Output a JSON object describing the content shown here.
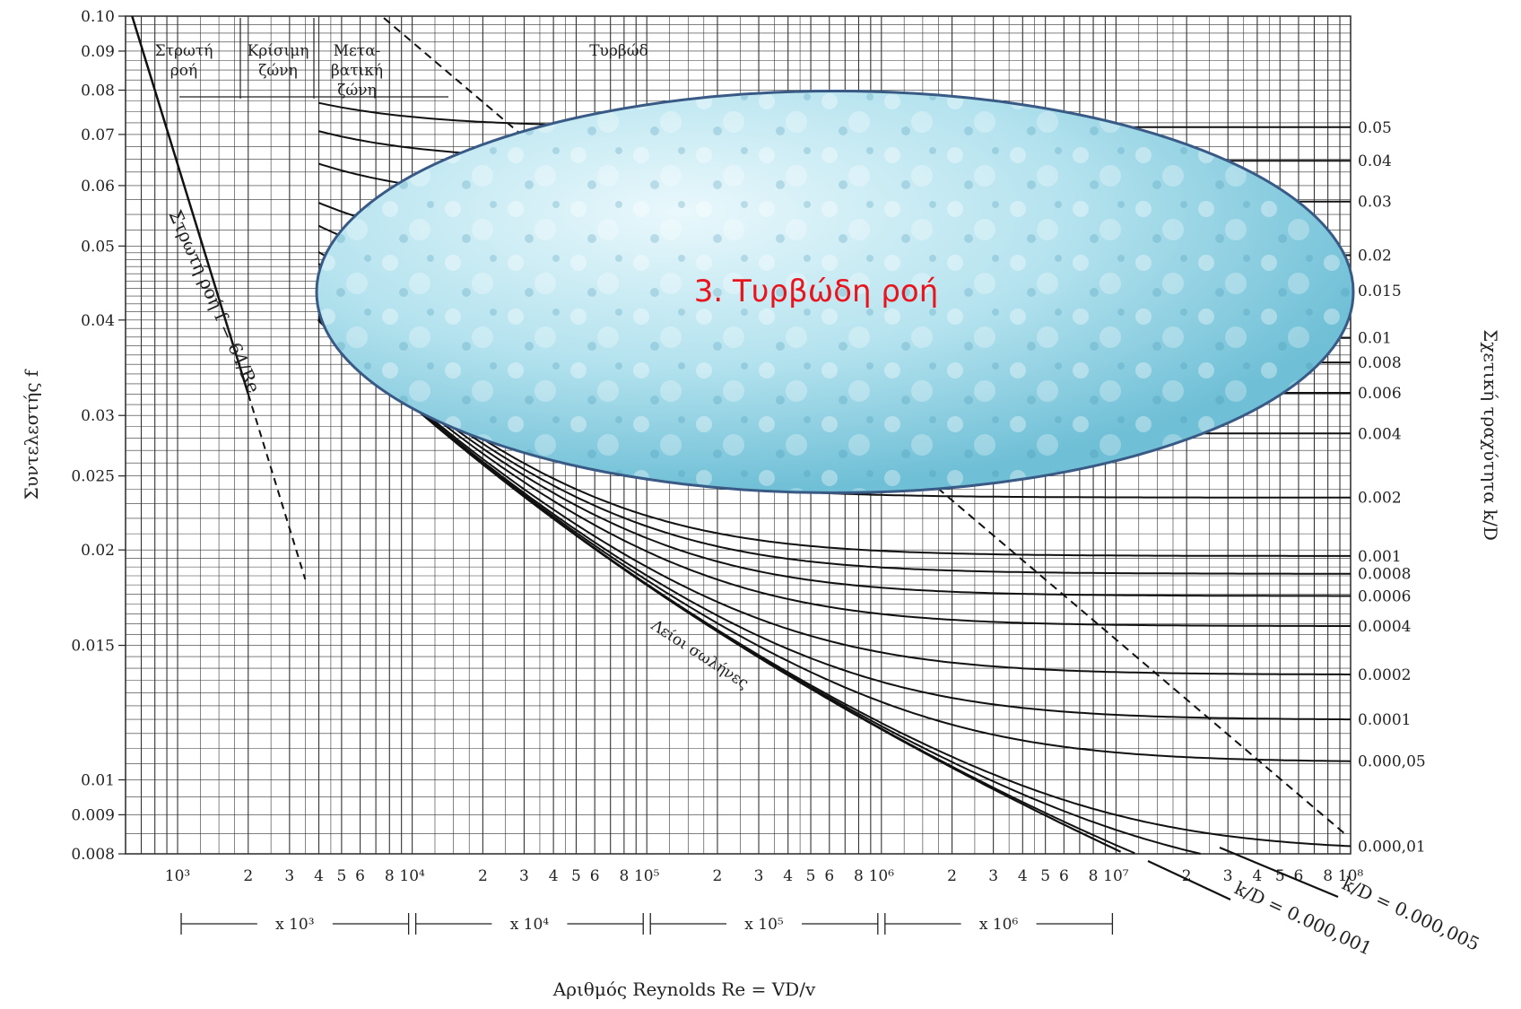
{
  "overlay": {
    "label": "3. Τυρβώδη ροή",
    "fill": "#9fd6e6",
    "stroke": "#3a5a86",
    "text_color": "#e8151e"
  },
  "chart_data": {
    "type": "line",
    "title": "",
    "xlabel": "Αριθμός Reynolds Re = VD/v",
    "ylabel": "Συντελεστής f",
    "ylabel_right": "Σχετική τραχύτητα k/D",
    "x_scale": "log",
    "y_scale": "log",
    "xlim": [
      600,
      100000000
    ],
    "ylim": [
      0.008,
      0.1
    ],
    "y_ticks": [
      "0.10",
      "0.09",
      "0.08",
      "0.07",
      "0.06",
      "0.05",
      "0.04",
      "0.03",
      "0.025",
      "0.02",
      "0.015",
      "0.01",
      "0.009",
      "0.008"
    ],
    "y_tick_values": [
      0.1,
      0.09,
      0.08,
      0.07,
      0.06,
      0.05,
      0.04,
      0.03,
      0.025,
      0.02,
      0.015,
      0.01,
      0.009,
      0.008
    ],
    "x_ticks": [
      {
        "v": 1000,
        "t": "10³"
      },
      {
        "v": 2000,
        "t": "2"
      },
      {
        "v": 3000,
        "t": "3"
      },
      {
        "v": 4000,
        "t": "4"
      },
      {
        "v": 5000,
        "t": "5"
      },
      {
        "v": 6000,
        "t": "6"
      },
      {
        "v": 8000,
        "t": "8"
      },
      {
        "v": 10000,
        "t": "10⁴"
      },
      {
        "v": 20000,
        "t": "2"
      },
      {
        "v": 30000,
        "t": "3"
      },
      {
        "v": 40000,
        "t": "4"
      },
      {
        "v": 50000,
        "t": "5"
      },
      {
        "v": 60000,
        "t": "6"
      },
      {
        "v": 80000,
        "t": "8"
      },
      {
        "v": 100000,
        "t": "10⁵"
      },
      {
        "v": 200000,
        "t": "2"
      },
      {
        "v": 300000,
        "t": "3"
      },
      {
        "v": 400000,
        "t": "4"
      },
      {
        "v": 500000,
        "t": "5"
      },
      {
        "v": 600000,
        "t": "6"
      },
      {
        "v": 800000,
        "t": "8"
      },
      {
        "v": 1000000,
        "t": "10⁶"
      },
      {
        "v": 2000000,
        "t": "2"
      },
      {
        "v": 3000000,
        "t": "3"
      },
      {
        "v": 4000000,
        "t": "4"
      },
      {
        "v": 5000000,
        "t": "5"
      },
      {
        "v": 6000000,
        "t": "6"
      },
      {
        "v": 8000000,
        "t": "8"
      },
      {
        "v": 10000000,
        "t": "10⁷"
      },
      {
        "v": 20000000,
        "t": "2"
      },
      {
        "v": 30000000,
        "t": "3"
      },
      {
        "v": 40000000,
        "t": "4"
      },
      {
        "v": 50000000,
        "t": "5"
      },
      {
        "v": 60000000,
        "t": "6"
      },
      {
        "v": 80000000,
        "t": "8"
      },
      {
        "v": 100000000,
        "t": "10⁸"
      }
    ],
    "multiplier_ranges": [
      {
        "from": 1000,
        "to": 10000,
        "label": "x 10³"
      },
      {
        "from": 10000,
        "to": 100000,
        "label": "x 10⁴"
      },
      {
        "from": 100000,
        "to": 1000000,
        "label": "x 10⁵"
      },
      {
        "from": 1000000,
        "to": 10000000,
        "label": "x 10⁶"
      }
    ],
    "zones": [
      {
        "label": [
          "Στρωτή",
          "ροή"
        ]
      },
      {
        "label": [
          "Κρίσιμη",
          "ζώνη"
        ]
      },
      {
        "label": [
          "Μετα-",
          "βατική",
          "ζώνη"
        ]
      },
      {
        "label": [
          "Τυρβώδ"
        ]
      }
    ],
    "laminar_label": "Στρωτή ροή f = 64/Re",
    "smooth_label": "Λείοι σωλήνες",
    "kD_labels": [
      "k/D = 0.000,001",
      "k/D = 0.000,005"
    ],
    "roughness_values": [
      {
        "label": "0.05",
        "value": 0.05
      },
      {
        "label": "0.04",
        "value": 0.04
      },
      {
        "label": "0.03",
        "value": 0.03
      },
      {
        "label": "0.02",
        "value": 0.02
      },
      {
        "label": "0.015",
        "value": 0.015
      },
      {
        "label": "0.01",
        "value": 0.01
      },
      {
        "label": "0.008",
        "value": 0.008
      },
      {
        "label": "0.006",
        "value": 0.006
      },
      {
        "label": "0.004",
        "value": 0.004
      },
      {
        "label": "0.002",
        "value": 0.002
      },
      {
        "label": "0.001",
        "value": 0.001
      },
      {
        "label": "0.0008",
        "value": 0.0008
      },
      {
        "label": "0.0006",
        "value": 0.0006
      },
      {
        "label": "0.0004",
        "value": 0.0004
      },
      {
        "label": "0.0002",
        "value": 0.0002
      },
      {
        "label": "0.0001",
        "value": 0.0001
      },
      {
        "label": "0.000,05",
        "value": 5e-05
      },
      {
        "label": "0.000,01",
        "value": 1e-05
      }
    ],
    "extra_curves_kD": [
      5e-06,
      1e-06
    ],
    "series": [
      {
        "name": "Στρωτή ροή f = 64/Re",
        "points": [
          [
            640,
            0.1
          ],
          [
            2000,
            0.032
          ],
          [
            3500,
            0.0183
          ]
        ]
      }
    ],
    "grid": true
  }
}
